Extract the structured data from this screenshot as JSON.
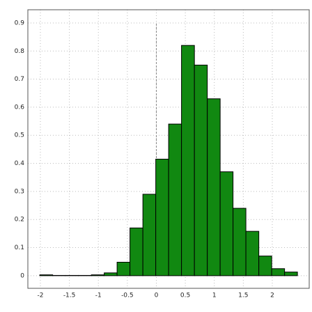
{
  "chart_data": {
    "type": "histogram",
    "bins": [
      -2.01,
      -1.788,
      -1.566,
      -1.343,
      -1.121,
      -0.899,
      -0.677,
      -0.455,
      -0.232,
      -0.01,
      0.212,
      0.434,
      0.657,
      0.879,
      1.101,
      1.323,
      1.545,
      1.768,
      1.99,
      2.212,
      2.434
    ],
    "values": [
      0.003,
      0.001,
      0.001,
      0.001,
      0.003,
      0.01,
      0.048,
      0.17,
      0.29,
      0.415,
      0.54,
      0.82,
      0.75,
      0.63,
      0.37,
      0.24,
      0.158,
      0.07,
      0.025,
      0.013
    ],
    "color": "#118811",
    "xlim": [
      -2.216,
      2.637
    ],
    "ylim": [
      -0.045,
      0.947
    ],
    "xticks": [
      -2,
      -1.5,
      -1,
      -0.5,
      0,
      0.5,
      1,
      1.5,
      2
    ],
    "yticks": [
      0,
      0.1,
      0.2,
      0.3,
      0.4,
      0.5,
      0.6,
      0.7,
      0.8,
      0.9
    ],
    "grid": true,
    "vlines": [
      0
    ]
  }
}
